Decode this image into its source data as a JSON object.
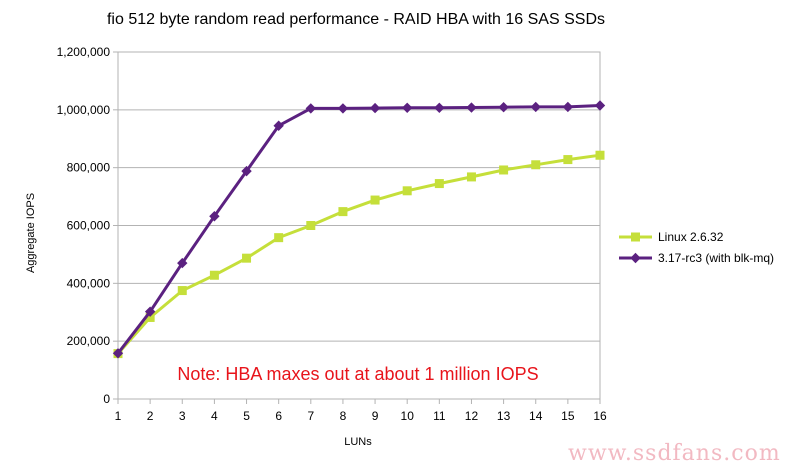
{
  "chart_data": {
    "type": "line",
    "title": "fio 512 byte random read performance - RAID HBA with 16 SAS SSDs",
    "xlabel": "LUNs",
    "ylabel": "Aggregate IOPS",
    "ylim": [
      0,
      1200000
    ],
    "y_ticks": [
      "0",
      "200,000",
      "400,000",
      "600,000",
      "800,000",
      "1,000,000",
      "1,200,000"
    ],
    "y_tick_values": [
      0,
      200000,
      400000,
      600000,
      800000,
      1000000,
      1200000
    ],
    "x": [
      1,
      2,
      3,
      4,
      5,
      6,
      7,
      8,
      9,
      10,
      11,
      12,
      13,
      14,
      15,
      16
    ],
    "grid": "horizontal",
    "legend_position": "right",
    "series": [
      {
        "name": "Linux 2.6.32",
        "color": "#c5df3a",
        "marker": "square",
        "values": [
          157000,
          282000,
          375000,
          428000,
          487000,
          558000,
          600000,
          648000,
          688000,
          720000,
          745000,
          768000,
          792000,
          810000,
          828000,
          843000
        ]
      },
      {
        "name": "3.17-rc3 (with blk-mq)",
        "color": "#5b2180",
        "marker": "diamond",
        "values": [
          158000,
          302000,
          470000,
          632000,
          788000,
          945000,
          1005000,
          1005000,
          1006000,
          1007000,
          1007000,
          1008000,
          1009000,
          1010000,
          1010000,
          1015000
        ]
      }
    ],
    "annotation": "Note: HBA maxes out at about 1 million IOPS"
  },
  "watermark": "www.ssdfans.com"
}
